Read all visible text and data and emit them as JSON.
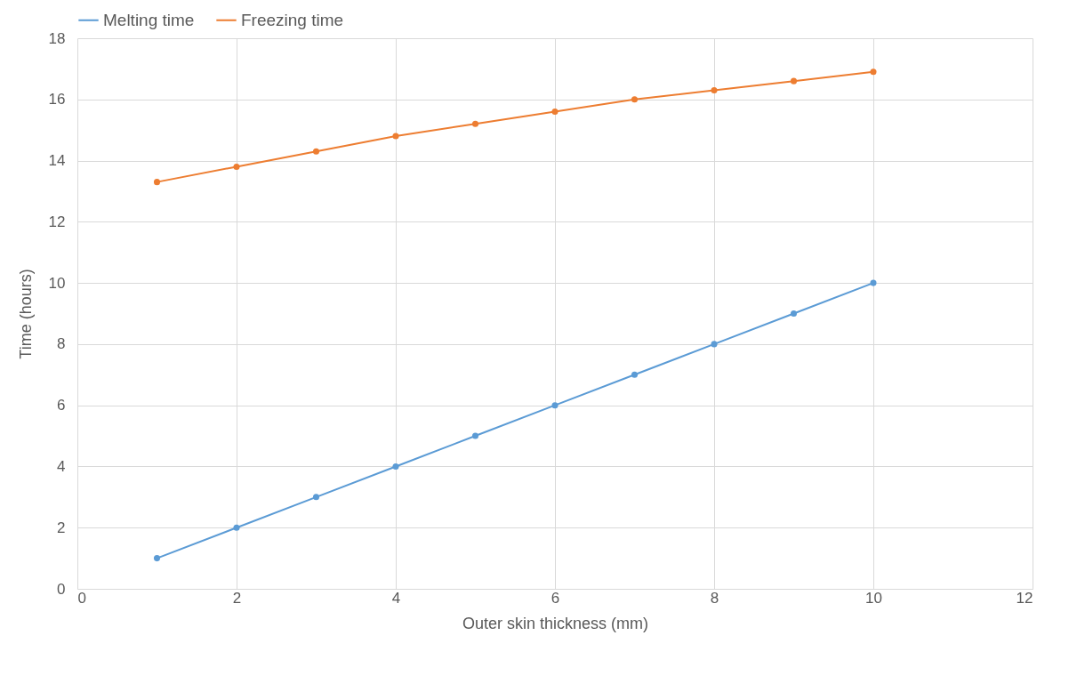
{
  "chart_data": {
    "type": "line",
    "xlabel": "Outer skin thickness (mm)",
    "ylabel": "Time (hours)",
    "x": [
      1,
      2,
      3,
      4,
      5,
      6,
      7,
      8,
      9,
      10
    ],
    "series": [
      {
        "name": "Melting time",
        "color": "#5b9bd5",
        "values": [
          1,
          2,
          3,
          4,
          5,
          6,
          7,
          8,
          9,
          10
        ]
      },
      {
        "name": "Freezing time",
        "color": "#ed7d31",
        "values": [
          13.3,
          13.8,
          14.3,
          14.8,
          15.2,
          15.6,
          16.0,
          16.3,
          16.6,
          16.9
        ]
      }
    ],
    "xlim": [
      0,
      12
    ],
    "xticks": [
      0,
      2,
      4,
      6,
      8,
      10,
      12
    ],
    "ylim": [
      0,
      18
    ],
    "yticks": [
      0,
      2,
      4,
      6,
      8,
      10,
      12,
      14,
      16,
      18
    ],
    "grid": true,
    "legend": "top",
    "marker": "circle",
    "line_style": "solid"
  }
}
